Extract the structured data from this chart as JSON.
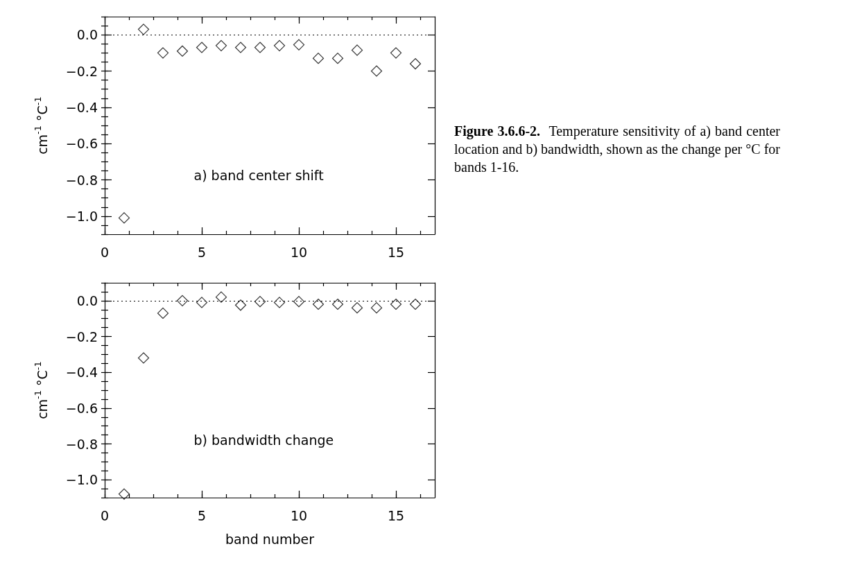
{
  "chart_data": [
    {
      "type": "scatter",
      "ylabel": "cm$^{-1}$ °C$^{-1}$",
      "marker": "diamond",
      "grid": false,
      "annotations": [
        "a) band center shift",
        "Figure 3.6.6-2.",
        "Temperature sensitivity of a) band center location and b) bandwidth, shown as the change per °C for bands 1-16."
      ],
      "x": [
        1,
        2,
        3,
        4,
        5,
        6,
        7,
        8,
        9,
        10,
        11,
        12,
        13,
        14,
        15,
        16
      ],
      "series": [
        {
          "color": "#000000",
          "values": [
            -1.01,
            0.03,
            -0.1,
            -0.09,
            -0.07,
            -0.06,
            -0.07,
            -0.07,
            -0.06,
            -0.055,
            -0.13,
            -0.13,
            -0.085,
            -0.2,
            -0.1,
            -0.16
          ]
        }
      ],
      "xlim": [
        0,
        17
      ],
      "xticks": [
        0,
        5,
        10,
        15
      ],
      "ylim": [
        -1.1,
        0.1
      ],
      "yticks": [
        {
          "value": -1.0,
          "label": "−1.0"
        },
        {
          "value": -0.8,
          "label": "−0.8"
        },
        {
          "value": -0.6,
          "label": "−0.6"
        },
        {
          "value": -0.4,
          "label": "−0.4"
        },
        {
          "value": -0.2,
          "label": "−0.2"
        },
        {
          "value": 0,
          "label": "0.0"
        }
      ],
      "ref_lines": [
        {
          "axis": "y",
          "value": 0,
          "line_style": "dotted",
          "color": "#000000"
        }
      ]
    },
    {
      "type": "scatter",
      "xlabel": "band number",
      "ylabel": "cm$^{-1}$ °C$^{-1}$",
      "marker": "diamond",
      "grid": false,
      "annotations": [
        "b) bandwidth change"
      ],
      "x": [
        1,
        2,
        3,
        4,
        5,
        6,
        7,
        8,
        9,
        10,
        11,
        12,
        13,
        14,
        15,
        16
      ],
      "series": [
        {
          "color": "#000000",
          "values": [
            -1.08,
            -0.32,
            -0.07,
            0.0,
            -0.01,
            0.02,
            -0.025,
            -0.005,
            -0.01,
            -0.005,
            -0.02,
            -0.02,
            -0.04,
            -0.04,
            -0.02,
            -0.02
          ]
        }
      ],
      "xlim": [
        0,
        17
      ],
      "xticks": [
        0,
        5,
        10,
        15
      ],
      "ylim": [
        -1.1,
        0.1
      ],
      "yticks": [
        {
          "value": -1.0,
          "label": "−1.0"
        },
        {
          "value": -0.8,
          "label": "−0.8"
        },
        {
          "value": -0.6,
          "label": "−0.6"
        },
        {
          "value": -0.4,
          "label": "−0.4"
        },
        {
          "value": -0.2,
          "label": "−0.2"
        },
        {
          "value": 0,
          "label": "0.0"
        }
      ],
      "ref_lines": [
        {
          "axis": "y",
          "value": 0,
          "line_style": "dotted",
          "color": "#000000"
        }
      ]
    }
  ]
}
